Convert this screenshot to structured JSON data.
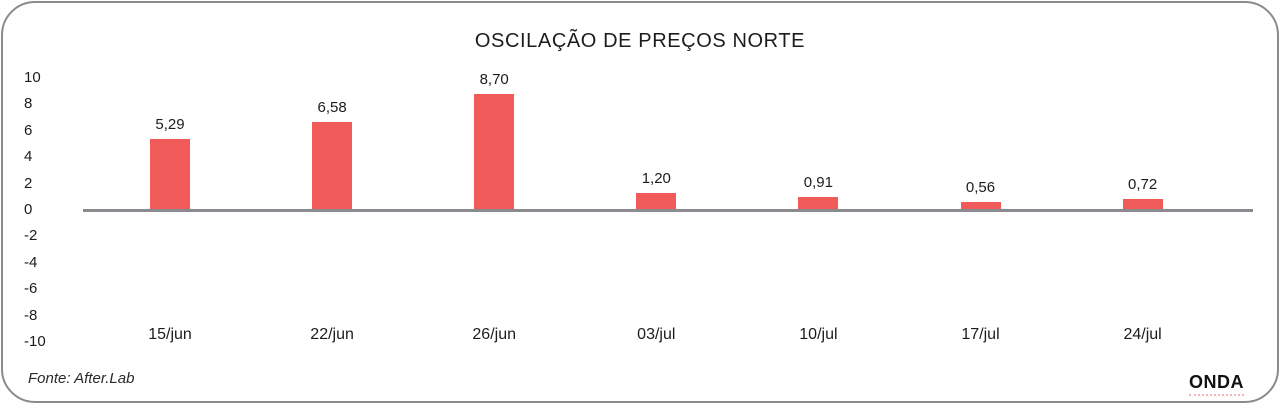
{
  "chart_data": {
    "type": "bar",
    "title": "OSCILAÇÃO DE PREÇOS NORTE",
    "categories": [
      "15/jun",
      "22/jun",
      "26/jun",
      "03/jul",
      "10/jul",
      "17/jul",
      "24/jul"
    ],
    "values": [
      5.29,
      6.58,
      8.7,
      1.2,
      0.91,
      0.56,
      0.72
    ],
    "value_labels": [
      "5,29",
      "6,58",
      "8,70",
      "1,20",
      "0,91",
      "0,56",
      "0,72"
    ],
    "y_ticks": [
      10,
      8,
      6,
      4,
      2,
      0,
      -2,
      -4,
      -6,
      -8,
      -10
    ],
    "ylim": [
      -10,
      10
    ],
    "xlabel": "",
    "ylabel": "",
    "grid": false,
    "legend": false,
    "bar_color": "#F05A58",
    "axis_line_color": "#8b8b8f",
    "text_color": "#1c1c1e"
  },
  "footer": {
    "source": "Fonte: After.Lab",
    "brand": "ONDA"
  }
}
